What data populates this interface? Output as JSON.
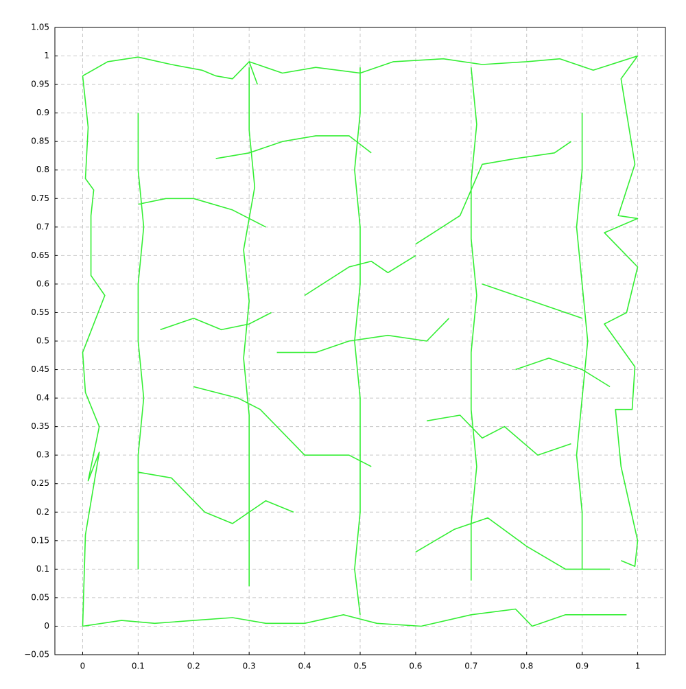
{
  "chart_data": {
    "type": "line",
    "xlim": [
      -0.05,
      1.05
    ],
    "ylim": [
      -0.05,
      1.05
    ],
    "xticks": [
      0,
      0.1,
      0.2,
      0.3,
      0.4,
      0.5,
      0.6,
      0.7,
      0.8,
      0.9,
      1
    ],
    "yticks": [
      {
        "value": -0.05,
        "label": "−0.05"
      },
      0,
      0.05,
      0.1,
      0.15,
      0.2,
      0.25,
      0.3,
      0.35,
      0.4,
      0.45,
      0.5,
      0.55,
      0.6,
      0.65,
      0.7,
      0.75,
      0.8,
      0.85,
      0.9,
      0.95,
      1,
      1.05
    ],
    "grid": true,
    "series": [
      {
        "color": "#33ee33",
        "x": [
          0,
          0.045,
          0.1,
          0.16,
          0.215,
          0.24,
          0.27,
          0.3,
          0.315,
          null,
          0,
          0.07,
          0.13,
          0.2,
          0.27,
          0.33,
          0.4,
          0.47,
          0.53,
          0.61,
          0.7,
          0.78,
          0.81,
          0.87,
          0.98,
          null,
          1,
          0.97,
          0.995,
          0.965,
          1,
          0.94,
          1,
          0.98,
          0.94,
          0.995,
          0.99,
          0.96,
          0.97,
          1,
          0.995,
          0.97,
          null,
          0,
          0.01,
          0.005,
          0.02,
          0.015,
          0.015,
          0.04,
          0,
          0.005,
          0.03,
          0.01,
          0.03,
          0.005,
          0,
          null,
          0.3,
          0.36,
          0.42,
          0.5,
          0.56,
          0.65,
          0.72,
          0.8,
          0.86,
          0.92,
          1,
          null,
          0.6,
          0.68,
          0.72,
          0.78,
          0.85,
          0.88,
          null,
          0.2,
          0.28,
          0.32,
          0.4,
          0.48,
          0.52,
          null,
          0.35,
          0.42,
          0.48,
          0.55,
          0.62,
          0.66,
          null,
          0.4,
          0.48,
          0.52,
          0.55,
          0.6,
          null,
          0.1,
          0.16,
          0.22,
          0.27,
          0.33,
          0.38,
          null,
          0.6,
          0.67,
          0.73,
          0.8,
          0.87,
          0.95,
          null,
          0.14,
          0.2,
          0.25,
          0.3,
          0.34,
          null,
          0.62,
          0.68,
          0.72,
          0.76,
          0.82,
          0.88,
          null,
          0.24,
          0.3,
          0.36,
          0.42,
          0.48,
          0.52,
          null,
          0.1,
          0.15,
          0.2,
          0.27,
          0.33,
          null,
          0.72,
          0.78,
          0.84,
          0.9,
          null,
          0.78,
          0.84,
          0.9,
          0.95,
          null,
          0.5,
          0.5,
          0.49,
          0.5,
          0.5,
          0.49,
          0.5,
          0.5,
          0.5,
          0.49,
          0.5,
          null,
          0.3,
          0.3,
          0.31,
          0.29,
          0.3,
          0.29,
          0.3,
          0.3,
          0.3,
          0.3,
          null,
          0.7,
          0.71,
          0.7,
          0.7,
          0.71,
          0.7,
          0.7,
          0.71,
          0.7,
          0.7,
          null,
          0.1,
          0.1,
          0.11,
          0.1,
          0.1,
          0.11,
          0.1,
          0.1,
          0.1,
          null,
          0.9,
          0.9,
          0.89,
          0.9,
          0.91,
          0.9,
          0.89,
          0.9,
          0.9
        ],
        "values": [
          0.965,
          0.99,
          0.998,
          0.985,
          0.975,
          0.965,
          0.96,
          0.99,
          0.95,
          null,
          0,
          0.01,
          0.005,
          0.01,
          0.015,
          0.005,
          0.005,
          0.02,
          0.005,
          0,
          0.02,
          0.03,
          0,
          0.02,
          0.02,
          null,
          1,
          0.96,
          0.81,
          0.72,
          0.715,
          0.69,
          0.63,
          0.55,
          0.53,
          0.455,
          0.38,
          0.38,
          0.28,
          0.15,
          0.105,
          0.115,
          null,
          0.965,
          0.875,
          0.785,
          0.765,
          0.72,
          0.615,
          0.58,
          0.48,
          0.41,
          0.35,
          0.255,
          0.305,
          0.16,
          0,
          null,
          0.99,
          0.97,
          0.98,
          0.97,
          0.99,
          0.995,
          0.985,
          0.99,
          0.995,
          0.975,
          1,
          null,
          0.67,
          0.72,
          0.81,
          0.82,
          0.83,
          0.85,
          null,
          0.42,
          0.4,
          0.38,
          0.3,
          0.3,
          0.28,
          null,
          0.48,
          0.48,
          0.5,
          0.51,
          0.5,
          0.54,
          null,
          0.58,
          0.63,
          0.64,
          0.62,
          0.65,
          null,
          0.27,
          0.26,
          0.2,
          0.18,
          0.22,
          0.2,
          null,
          0.13,
          0.17,
          0.19,
          0.14,
          0.1,
          0.1,
          null,
          0.52,
          0.54,
          0.52,
          0.53,
          0.55,
          null,
          0.36,
          0.37,
          0.33,
          0.35,
          0.3,
          0.32,
          null,
          0.82,
          0.83,
          0.85,
          0.86,
          0.86,
          0.83,
          null,
          0.74,
          0.75,
          0.75,
          0.73,
          0.7,
          null,
          0.6,
          0.58,
          0.56,
          0.54,
          null,
          0.45,
          0.47,
          0.45,
          0.42,
          null,
          0.98,
          0.9,
          0.8,
          0.7,
          0.6,
          0.5,
          0.4,
          0.3,
          0.2,
          0.1,
          0.02,
          null,
          0.98,
          0.87,
          0.77,
          0.66,
          0.57,
          0.47,
          0.37,
          0.27,
          0.17,
          0.07,
          null,
          0.98,
          0.88,
          0.78,
          0.68,
          0.58,
          0.48,
          0.38,
          0.28,
          0.18,
          0.08,
          null,
          0.9,
          0.8,
          0.7,
          0.6,
          0.5,
          0.4,
          0.3,
          0.2,
          0.1,
          null,
          0.9,
          0.8,
          0.7,
          0.6,
          0.5,
          0.4,
          0.3,
          0.2,
          0.1
        ]
      }
    ]
  }
}
